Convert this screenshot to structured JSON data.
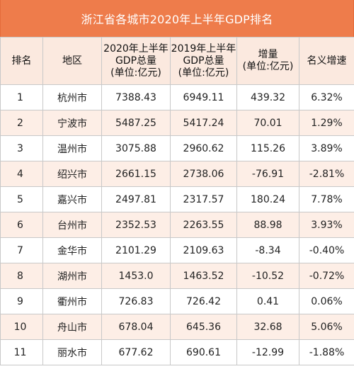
{
  "title": "浙江省各城市2020年上半年GDP排名",
  "headers": [
    "排名",
    "地区",
    "2020年上半年\nGDP总量\n(单位:亿元)",
    "2019年上半年\nGDP总量\n(单位:亿元)",
    "增量\n(单位:亿元)",
    "名义增速"
  ],
  "rows": [
    [
      "1",
      "杭州市",
      "7388.43",
      "6949.11",
      "439.32",
      "6.32%"
    ],
    [
      "2",
      "宁波市",
      "5487.25",
      "5417.24",
      "70.01",
      "1.29%"
    ],
    [
      "3",
      "温州市",
      "3075.88",
      "2960.62",
      "115.26",
      "3.89%"
    ],
    [
      "4",
      "绍兴市",
      "2661.15",
      "2738.06",
      "-76.91",
      "-2.81%"
    ],
    [
      "5",
      "嘉兴市",
      "2497.81",
      "2317.57",
      "180.24",
      "7.78%"
    ],
    [
      "6",
      "台州市",
      "2352.53",
      "2263.55",
      "88.98",
      "3.93%"
    ],
    [
      "7",
      "金华市",
      "2101.29",
      "2109.63",
      "-8.34",
      "-0.40%"
    ],
    [
      "8",
      "湖州市",
      "1453.0",
      "1463.52",
      "-10.52",
      "-0.72%"
    ],
    [
      "9",
      "衢州市",
      "726.83",
      "726.42",
      "0.41",
      "0.06%"
    ],
    [
      "10",
      "舟山市",
      "678.04",
      "645.36",
      "32.68",
      "5.06%"
    ],
    [
      "11",
      "丽水市",
      "677.62",
      "690.61",
      "-12.99",
      "-1.88%"
    ]
  ],
  "colors": {
    "title_bg": "#ee7c4b",
    "header_bg": "#fbe9df",
    "stripe_bg": "#fdeee6",
    "border": "#c8c8c8"
  }
}
